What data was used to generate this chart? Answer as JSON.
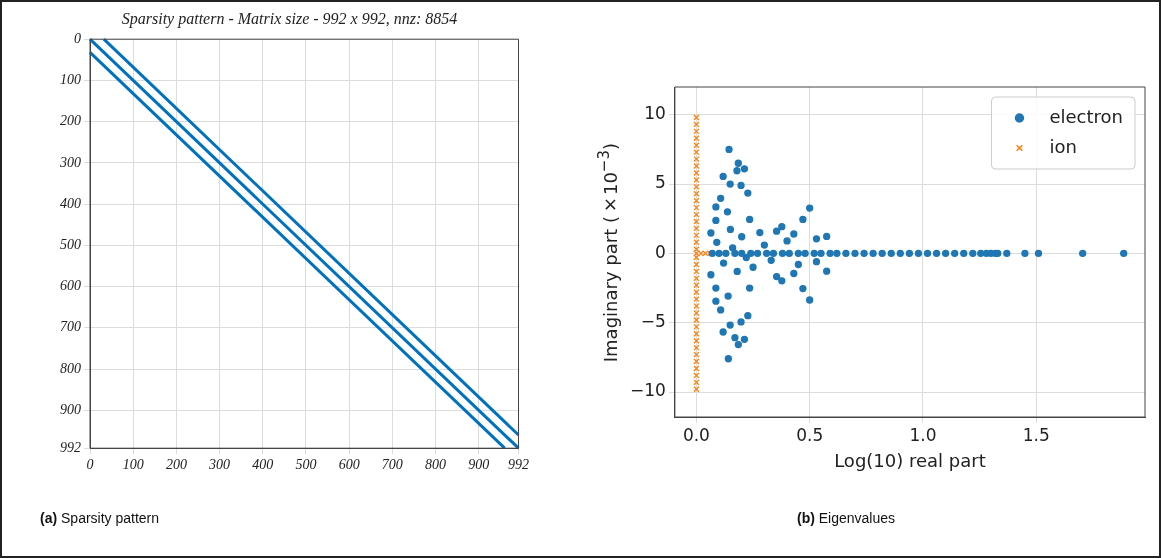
{
  "chart_data": [
    {
      "type": "line",
      "title": "Sparsity pattern - Matrix size - 992 x 992, nnz: 8854",
      "xlim": [
        0,
        992
      ],
      "ylim": [
        992,
        0
      ],
      "xticks": [
        0,
        100,
        200,
        300,
        400,
        500,
        600,
        700,
        800,
        900,
        992
      ],
      "yticks": [
        0,
        100,
        200,
        300,
        400,
        500,
        600,
        700,
        800,
        900,
        992
      ],
      "grid": true,
      "line_style": "solid",
      "marker": "none",
      "annotations": [
        "(a) Sparsity pattern"
      ],
      "series": [
        {
          "color": "#0072bd",
          "x": [
            32,
            992
          ],
          "values": [
            0,
            960
          ]
        },
        {
          "color": "#0072bd",
          "x": [
            0,
            992
          ],
          "values": [
            0,
            992
          ]
        },
        {
          "color": "#0072bd",
          "x": [
            0,
            960
          ],
          "values": [
            32,
            992
          ]
        }
      ]
    },
    {
      "type": "scatter",
      "xlabel": "Log(10) real part",
      "ylabel": "Imaginary part (×10$^{−3}$)",
      "xlim": [
        -0.095,
        1.98
      ],
      "ylim": [
        -11.8,
        12
      ],
      "xticks": [
        {
          "value": 0,
          "label": "0.0"
        },
        {
          "value": 0.5,
          "label": "0.5"
        },
        {
          "value": 1,
          "label": "1.0"
        },
        {
          "value": 1.5,
          "label": "1.5"
        }
      ],
      "yticks": [
        {
          "value": -10,
          "label": "−10"
        },
        {
          "value": -5,
          "label": "−5"
        },
        0,
        5,
        10
      ],
      "grid": true,
      "legend": "top right",
      "annotations": [
        "(b) Eigenvalues"
      ],
      "series": [
        {
          "name": "electron",
          "color": "#1f77b4",
          "marker": "circle",
          "x": [
            0.144,
            0.185,
            0.179,
            0.212,
            0.118,
            0.149,
            0.197,
            0.227,
            0.107,
            0.086,
            0.137,
            0.5,
            0.47,
            0.086,
            0.235,
            0.064,
            0.15,
            0.377,
            0.354,
            0.43,
            0.575,
            0.53,
            0.141,
            0.185,
            0.17,
            0.212,
            0.118,
            0.149,
            0.197,
            0.227,
            0.107,
            0.086,
            0.14,
            0.5,
            0.47,
            0.086,
            0.235,
            0.064,
            0.354,
            0.377,
            0.43,
            0.575,
            0.53,
            0.09,
            0.12,
            0.2,
            0.25,
            0.3,
            0.33,
            0.4,
            0.45,
            0.28,
            0.18,
            0.16,
            0.22,
            0.07,
            0.1,
            0.13,
            0.17,
            0.2,
            0.24,
            0.27,
            0.31,
            0.34,
            0.38,
            0.41,
            0.45,
            0.48,
            0.52,
            0.55,
            0.59,
            0.62,
            0.66,
            0.7,
            0.74,
            0.78,
            0.82,
            0.86,
            0.9,
            0.94,
            0.98,
            1.02,
            1.06,
            1.1,
            1.14,
            1.18,
            1.22,
            1.255,
            1.28,
            1.3,
            1.32,
            1.33,
            1.37,
            1.45,
            1.51,
            1.705,
            1.886
          ],
          "values": [
            7.5,
            6.5,
            5.96,
            6.1,
            5.55,
            5.0,
            4.9,
            4.35,
            3.97,
            3.35,
            3.0,
            3.27,
            2.45,
            2.38,
            2.45,
            1.47,
            1.73,
            1.93,
            1.6,
            1.4,
            1.22,
            1.05,
            -7.6,
            -6.58,
            -6.08,
            -6.2,
            -5.67,
            -5.17,
            -4.94,
            -4.49,
            -4.08,
            -3.45,
            -3.08,
            -3.36,
            -2.54,
            -2.5,
            -2.5,
            -1.54,
            -1.67,
            -1.98,
            -1.45,
            -1.28,
            -0.6,
            0.8,
            -0.7,
            1.2,
            -1.0,
            0.6,
            -0.5,
            0.9,
            -0.8,
            1.5,
            -1.3,
            0.4,
            -0.3,
            0,
            0,
            0,
            0,
            0,
            0,
            0,
            0,
            0,
            0,
            0,
            0,
            0,
            0,
            0,
            0,
            0,
            0,
            0,
            0,
            0,
            0,
            0,
            0,
            0,
            0,
            0,
            0,
            0,
            0,
            0,
            0,
            0,
            0,
            0,
            0,
            0,
            0,
            0,
            0,
            0,
            0
          ]
        },
        {
          "name": "ion",
          "color": "#ff7f0e",
          "marker": "cross",
          "x": [
            0,
            0,
            0,
            0,
            0,
            0,
            0,
            0,
            0,
            0,
            0,
            0,
            0,
            0,
            0,
            0,
            0,
            0,
            0,
            0,
            0,
            0,
            0,
            0,
            0,
            0,
            0,
            0,
            0,
            0,
            0,
            0,
            0,
            0,
            0,
            0,
            0,
            0,
            0,
            0,
            0,
            0.02,
            0.04,
            0.06
          ],
          "values": [
            -9.8,
            -9.3,
            -8.8,
            -8.3,
            -7.8,
            -7.3,
            -6.8,
            -6.3,
            -5.8,
            -5.3,
            -4.8,
            -4.3,
            -3.8,
            -3.3,
            -2.8,
            -2.3,
            -1.8,
            -1.3,
            -0.8,
            -0.3,
            0,
            0.3,
            0.8,
            1.3,
            1.8,
            2.3,
            2.8,
            3.3,
            3.8,
            4.3,
            4.8,
            5.3,
            5.8,
            6.3,
            6.8,
            7.3,
            7.8,
            8.3,
            8.8,
            9.3,
            9.8,
            0,
            0,
            0
          ]
        }
      ]
    }
  ]
}
